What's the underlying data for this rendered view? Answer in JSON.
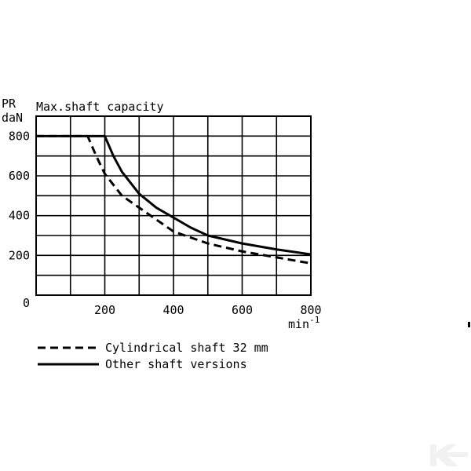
{
  "chart_data": {
    "type": "line",
    "title": "Max.shaft capacity",
    "ylabel_line1": "PR",
    "ylabel_line2": "daN",
    "xlabel": "min",
    "xlabel_sup": "-1",
    "origin_label": "0",
    "xlim": [
      0,
      800
    ],
    "ylim": [
      0,
      900
    ],
    "grid": true,
    "x_gridlines": [
      100,
      200,
      300,
      400,
      500,
      600,
      700
    ],
    "y_gridlines": [
      100,
      200,
      300,
      400,
      500,
      600,
      700,
      800
    ],
    "x_ticks": [
      {
        "value": 200,
        "label": "200"
      },
      {
        "value": 400,
        "label": "400"
      },
      {
        "value": 600,
        "label": "600"
      },
      {
        "value": 800,
        "label": "800"
      }
    ],
    "y_ticks": [
      {
        "value": 200,
        "label": "200"
      },
      {
        "value": 400,
        "label": "400"
      },
      {
        "value": 600,
        "label": "600"
      },
      {
        "value": 800,
        "label": "800"
      }
    ],
    "legend_position": "bottom-left",
    "series": [
      {
        "name": "Cylindrical shaft 32 mm",
        "style": "dashed",
        "x": [
          0,
          150,
          175,
          200,
          250,
          300,
          350,
          400,
          450,
          500,
          600,
          700,
          800
        ],
        "y": [
          800,
          800,
          700,
          610,
          500,
          440,
          380,
          320,
          290,
          260,
          220,
          190,
          160
        ]
      },
      {
        "name": "Other shaft versions",
        "style": "solid",
        "x": [
          0,
          200,
          225,
          250,
          300,
          350,
          400,
          450,
          500,
          600,
          700,
          800
        ],
        "y": [
          800,
          800,
          700,
          620,
          510,
          440,
          390,
          340,
          300,
          260,
          230,
          205
        ]
      }
    ]
  }
}
